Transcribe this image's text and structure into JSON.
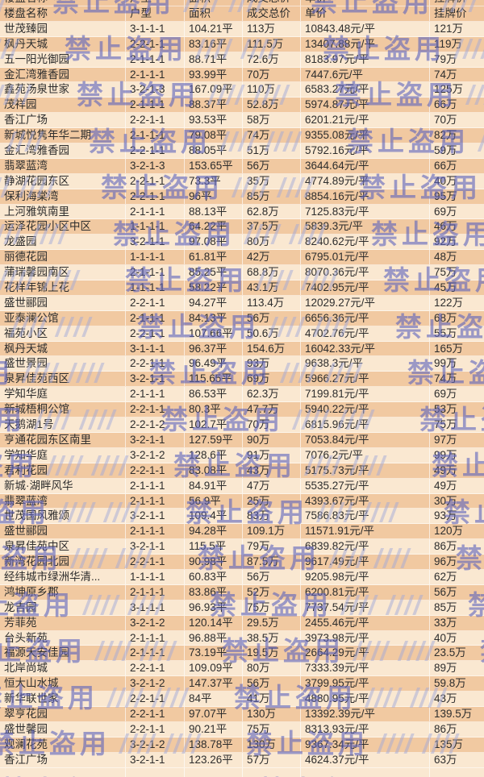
{
  "watermark": {
    "text": "禁止盗用",
    "slashes": "//// ////"
  },
  "colors": {
    "row_dark": "#f1c9a1",
    "row_light": "#fae8d1",
    "header_bg": "#f0c69d",
    "text": "#2d2d2d",
    "watermark_blue": "#5b63bd"
  },
  "table": {
    "headers": [
      "楼盘名称",
      "户型",
      "面积",
      "成交总价",
      "单价",
      "挂牌价"
    ],
    "rows": [
      [
        "世茂臻园",
        "3-1-1-1",
        "104.21平",
        "113万",
        "10843.48元/平",
        "121万"
      ],
      [
        "枫丹天城",
        "2-2-1-1",
        "83.16平",
        "111.5万",
        "13407.88元/平",
        "119万"
      ],
      [
        "五一阳光御园",
        "2-1-1-1",
        "88.71平",
        "72.6万",
        "8183.97元/平",
        "79万"
      ],
      [
        "金汇湾雅香园",
        "2-1-1-1",
        "93.99平",
        "70万",
        "7447.6元/平",
        "74万"
      ],
      [
        "鑫苑汤泉世家",
        "3-2-1-3",
        "167.09平",
        "110万",
        "6583.27元/平",
        "125万"
      ],
      [
        "茂祥园",
        "2-1-1-1",
        "88.37平",
        "52.8万",
        "5974.87元/平",
        "66万"
      ],
      [
        "香江广场",
        "2-2-1-1",
        "93.53平",
        "58万",
        "6201.21元/平",
        "70万"
      ],
      [
        "新城悦隽年华二期",
        "2-1-1-1",
        "79.08平",
        "74万",
        "9355.08元/平",
        "82万"
      ],
      [
        "金汇湾雅香园",
        "2-2-1-1",
        "88.05平",
        "51万",
        "5792.16元/平",
        "59万"
      ],
      [
        "翡翠蓝湾",
        "3-2-1-3",
        "153.65平",
        "56万",
        "3644.64元/平",
        "66万"
      ],
      [
        "静湖花园东区",
        "2-2-1-1",
        "73.3平",
        "35万",
        "4774.89元/平",
        "40万"
      ],
      [
        "保利海棠湾",
        "2-2-1-1",
        "96平",
        "85万",
        "8854.16元/平",
        "95万"
      ],
      [
        "上河雅筑南里",
        "2-1-1-1",
        "88.13平",
        "62.8万",
        "7125.83元/平",
        "69万"
      ],
      [
        "运泽花园小区中区",
        "1-1-1-1",
        "64.22平",
        "37.5万",
        "5839.3元/平",
        "46万"
      ],
      [
        "龙盛园",
        "3-2-1-1",
        "97.08平",
        "80万",
        "8240.62元/平",
        "92万"
      ],
      [
        "丽德花园",
        "1-1-1-1",
        "61.81平",
        "42万",
        "6795.01元/平",
        "48万"
      ],
      [
        "蒲瑞馨园南区",
        "2-1-1-1",
        "85.25平",
        "68.8万",
        "8070.36元/平",
        "75万"
      ],
      [
        "花样年锦上花",
        "1-1-1-1",
        "58.22平",
        "43.1万",
        "7402.95元/平",
        "45万"
      ],
      [
        "盛世郦园",
        "2-2-1-1",
        "94.27平",
        "113.4万",
        "12029.27元/平",
        "122万"
      ],
      [
        "亚泰澜公馆",
        "2-1-1-1",
        "84.13平",
        "56万",
        "6656.36元/平",
        "68万"
      ],
      [
        "福苑小区",
        "2-2-1-1",
        "107.66平",
        "50.6万",
        "4702.76元/平",
        "55万"
      ],
      [
        "枫丹天城",
        "3-1-1-1",
        "96.37平",
        "154.6万",
        "16042.33元/平",
        "165万"
      ],
      [
        "盛世景园",
        "2-2-1-1",
        "96.49平",
        "93万",
        "9638.3元/平",
        "99万"
      ],
      [
        "泉昇佳苑西区",
        "3-2-1-1",
        "115.65平",
        "69万",
        "5966.27元/平",
        "74万"
      ],
      [
        "学知华庭",
        "2-1-1-1",
        "86.53平",
        "62.3万",
        "7199.81元/平",
        "69万"
      ],
      [
        "新城梧桐公馆",
        "2-2-1-1",
        "80.3平",
        "47.7万",
        "5940.22元/平",
        "53万"
      ],
      [
        "天鹅湖1号",
        "2-2-1-2",
        "102.7平",
        "70万",
        "6815.96元/平",
        "75万"
      ],
      [
        "亨通花园东区南里",
        "3-2-1-1",
        "127.59平",
        "90万",
        "7053.84元/平",
        "97万"
      ],
      [
        "学知华庭",
        "3-2-1-2",
        "128.6平",
        "91万",
        "7076.2元/平",
        "99万"
      ],
      [
        "君利花园",
        "2-2-1-1",
        "83.08平",
        "43万",
        "5175.73元/平",
        "49万"
      ],
      [
        "新城·湖畔风华",
        "2-1-1-1",
        "84.91平",
        "47万",
        "5535.27元/平",
        "49万"
      ],
      [
        "翡翠蓝湾",
        "2-1-1-1",
        "56.9平",
        "25万",
        "4393.67元/平",
        "30万"
      ],
      [
        "世茂国风雅颂",
        "3-2-1-1",
        "109.4平",
        "83万",
        "7586.83元/平",
        "93万"
      ],
      [
        "盛世郦园",
        "2-1-1-1",
        "94.28平",
        "109.1万",
        "11571.91元/平",
        "120万"
      ],
      [
        "泉昇佳苑中区",
        "3-2-1-1",
        "115.5平",
        "79万",
        "6839.82元/平",
        "86万"
      ],
      [
        "新湾花园北园",
        "2-2-1-1",
        "90.98平",
        "87.5万",
        "9617.49元/平",
        "96万"
      ],
      [
        "经纬城市绿洲华清...",
        "1-1-1-1",
        "60.83平",
        "56万",
        "9205.98元/平",
        "62万"
      ],
      [
        "鸿坤原乡郡",
        "2-1-1-1",
        "83.86平",
        "52万",
        "6200.81元/平",
        "56万"
      ],
      [
        "龙吉园",
        "3-1-1-1",
        "96.93平",
        "75万",
        "7737.54元/平",
        "85万"
      ],
      [
        "芳菲苑",
        "3-2-1-2",
        "120.14平",
        "29.5万",
        "2455.46元/平",
        "33万"
      ],
      [
        "台头新苑",
        "2-1-1-1",
        "96.88平",
        "38.5万",
        "3973.98元/平",
        "40万"
      ],
      [
        "福源天安佳园",
        "2-1-1-1",
        "73.19平",
        "19.5万",
        "2664.29元/平",
        "23.5万"
      ],
      [
        "北岸尚城",
        "2-2-1-1",
        "109.09平",
        "80万",
        "7333.39元/平",
        "89万"
      ],
      [
        "恒大山水城",
        "3-2-1-2",
        "147.37平",
        "56万",
        "3799.95元/平",
        "59.8万"
      ],
      [
        "新华联世家",
        "2-2-1-1",
        "84平",
        "41万",
        "4880.95元/平",
        "43万"
      ],
      [
        "翠亨花园",
        "2-2-1-1",
        "97.07平",
        "130万",
        "13392.39元/平",
        "139.5万"
      ],
      [
        "盛世馨园",
        "2-2-1-1",
        "90.21平",
        "75万",
        "8313.93元/平",
        "86万"
      ],
      [
        "观澜花苑",
        "3-2-1-2",
        "138.78平",
        "130万",
        "9367.34元/平",
        "135万"
      ],
      [
        "香江广场",
        "3-2-1-1",
        "123.26平",
        "57万",
        "4624.37元/平",
        "63万"
      ]
    ]
  }
}
